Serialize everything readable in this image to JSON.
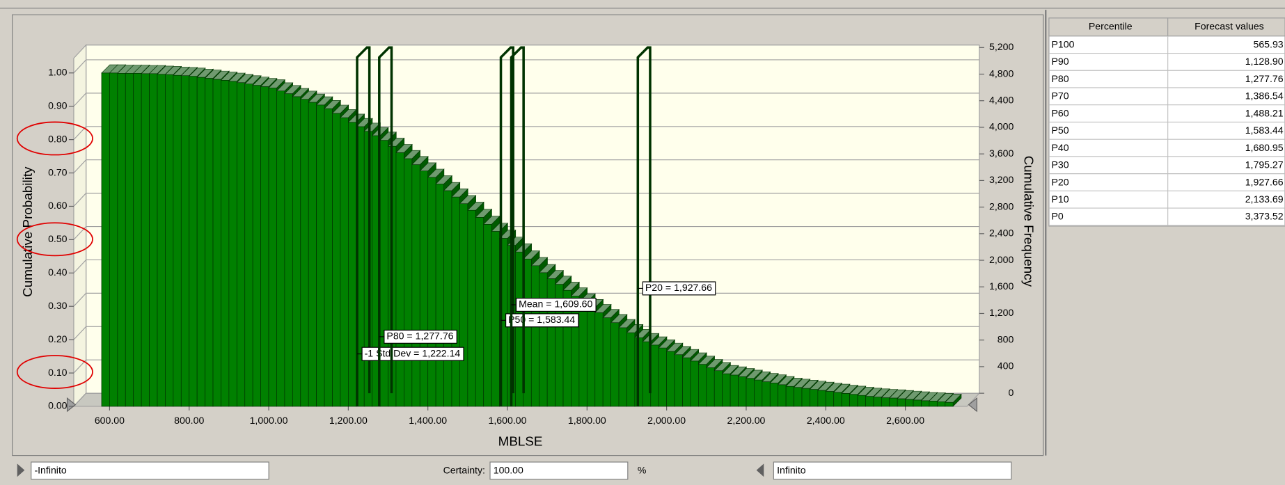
{
  "chart_data": {
    "type": "histogram",
    "xlabel": "MBLSE",
    "ylabel": "Cumulative Probability",
    "y2label": "Cumulative Frequency",
    "color": "#008000",
    "bins": [
      580,
      600,
      620,
      640,
      660,
      680,
      700,
      720,
      740,
      760,
      780,
      800,
      820,
      840,
      860,
      880,
      900,
      920,
      940,
      960,
      980,
      1000,
      1020,
      1040,
      1060,
      1080,
      1100,
      1120,
      1140,
      1160,
      1180,
      1200,
      1220,
      1240,
      1260,
      1280,
      1300,
      1320,
      1340,
      1360,
      1380,
      1400,
      1420,
      1440,
      1460,
      1480,
      1500,
      1520,
      1540,
      1560,
      1580,
      1600,
      1620,
      1640,
      1660,
      1680,
      1700,
      1720,
      1740,
      1760,
      1780,
      1800,
      1820,
      1840,
      1860,
      1880,
      1900,
      1920,
      1940,
      1960,
      1980,
      2000,
      2020,
      2040,
      2060,
      2080,
      2100,
      2120,
      2140,
      2160,
      2180,
      2200,
      2220,
      2240,
      2260,
      2280,
      2300,
      2320,
      2340,
      2360,
      2380,
      2400,
      2420,
      2440,
      2460,
      2480,
      2500,
      2520,
      2540,
      2560,
      2580,
      2600,
      2620,
      2640,
      2660,
      2680,
      2700,
      2720
    ],
    "values": [
      1.0,
      1.0,
      0.999,
      0.999,
      0.999,
      0.998,
      0.998,
      0.996,
      0.995,
      0.993,
      0.992,
      0.99,
      0.987,
      0.984,
      0.981,
      0.978,
      0.975,
      0.971,
      0.967,
      0.963,
      0.959,
      0.955,
      0.946,
      0.938,
      0.929,
      0.921,
      0.912,
      0.904,
      0.893,
      0.879,
      0.866,
      0.852,
      0.839,
      0.825,
      0.812,
      0.798,
      0.78,
      0.761,
      0.743,
      0.725,
      0.706,
      0.687,
      0.667,
      0.647,
      0.628,
      0.608,
      0.588,
      0.567,
      0.546,
      0.525,
      0.504,
      0.483,
      0.463,
      0.442,
      0.422,
      0.401,
      0.383,
      0.366,
      0.348,
      0.331,
      0.313,
      0.296,
      0.281,
      0.266,
      0.251,
      0.236,
      0.221,
      0.206,
      0.194,
      0.184,
      0.175,
      0.165,
      0.155,
      0.146,
      0.136,
      0.126,
      0.116,
      0.107,
      0.098,
      0.094,
      0.089,
      0.084,
      0.079,
      0.074,
      0.07,
      0.065,
      0.06,
      0.057,
      0.054,
      0.051,
      0.048,
      0.045,
      0.042,
      0.039,
      0.036,
      0.033,
      0.03,
      0.028,
      0.026,
      0.025,
      0.023,
      0.021,
      0.019,
      0.017,
      0.016,
      0.014,
      0.012
    ],
    "xlim": [
      510,
      2755
    ],
    "xticks": [
      {
        "value": 600,
        "label": "600.00"
      },
      {
        "value": 800,
        "label": "800.00"
      },
      {
        "value": 1000,
        "label": "1,000.00"
      },
      {
        "value": 1200,
        "label": "1,200.00"
      },
      {
        "value": 1400,
        "label": "1,400.00"
      },
      {
        "value": 1600,
        "label": "1,600.00"
      },
      {
        "value": 1800,
        "label": "1,800.00"
      },
      {
        "value": 2000,
        "label": "2,000.00"
      },
      {
        "value": 2200,
        "label": "2,200.00"
      },
      {
        "value": 2400,
        "label": "2,400.00"
      },
      {
        "value": 2600,
        "label": "2,600.00"
      }
    ],
    "ylim": [
      0,
      1
    ],
    "yticks": [
      {
        "value": 0,
        "label": "0.00"
      },
      {
        "value": 0.1,
        "label": "0.10"
      },
      {
        "value": 0.2,
        "label": "0.20"
      },
      {
        "value": 0.3,
        "label": "0.30"
      },
      {
        "value": 0.4,
        "label": "0.40"
      },
      {
        "value": 0.5,
        "label": "0.50"
      },
      {
        "value": 0.6,
        "label": "0.60"
      },
      {
        "value": 0.7,
        "label": "0.70"
      },
      {
        "value": 0.8,
        "label": "0.80"
      },
      {
        "value": 0.9,
        "label": "0.90"
      },
      {
        "value": 1,
        "label": "1.00"
      }
    ],
    "y2lim": [
      0,
      5200
    ],
    "y2ticks": [
      0,
      400,
      800,
      {
        "value": 1200,
        "label": "1,200"
      },
      {
        "value": 1600,
        "label": "1,600"
      },
      {
        "value": 2000,
        "label": "2,000"
      },
      {
        "value": 2400,
        "label": "2,400"
      },
      {
        "value": 2800,
        "label": "2,800"
      },
      {
        "value": 3200,
        "label": "3,200"
      },
      {
        "value": 3600,
        "label": "3,600"
      },
      {
        "value": 4000,
        "label": "4,000"
      },
      {
        "value": 4400,
        "label": "4,400"
      },
      {
        "value": 4800,
        "label": "4,800"
      },
      {
        "value": 5200,
        "label": "5,200"
      }
    ],
    "grid": true,
    "annotations": [
      {
        "label": "-1 Std Dev = 1,222.14",
        "value": 1222.14
      },
      {
        "label": "P80 = 1,277.76",
        "value": 1277.76
      },
      {
        "label": "P50 = 1,583.44",
        "value": 1583.44
      },
      {
        "label": "Mean = 1,609.60",
        "value": 1609.6
      },
      {
        "label": "P20 = 1,927.66",
        "value": 1927.66
      }
    ]
  },
  "table": {
    "headers": [
      "Percentile",
      "Forecast values"
    ],
    "rows": [
      [
        "P100",
        "565.93"
      ],
      [
        "P90",
        "1,128.90"
      ],
      [
        "P80",
        "1,277.76"
      ],
      [
        "P70",
        "1,386.54"
      ],
      [
        "P60",
        "1,488.21"
      ],
      [
        "P50",
        "1,583.44"
      ],
      [
        "P40",
        "1,680.95"
      ],
      [
        "P30",
        "1,795.27"
      ],
      [
        "P20",
        "1,927.66"
      ],
      [
        "P10",
        "2,133.69"
      ],
      [
        "P0",
        "3,373.52"
      ]
    ]
  },
  "controls": {
    "lower": "-Infinito",
    "certainty_label": "Certainty:",
    "certainty": "100.00",
    "unit": "%",
    "upper": "Infinito"
  }
}
